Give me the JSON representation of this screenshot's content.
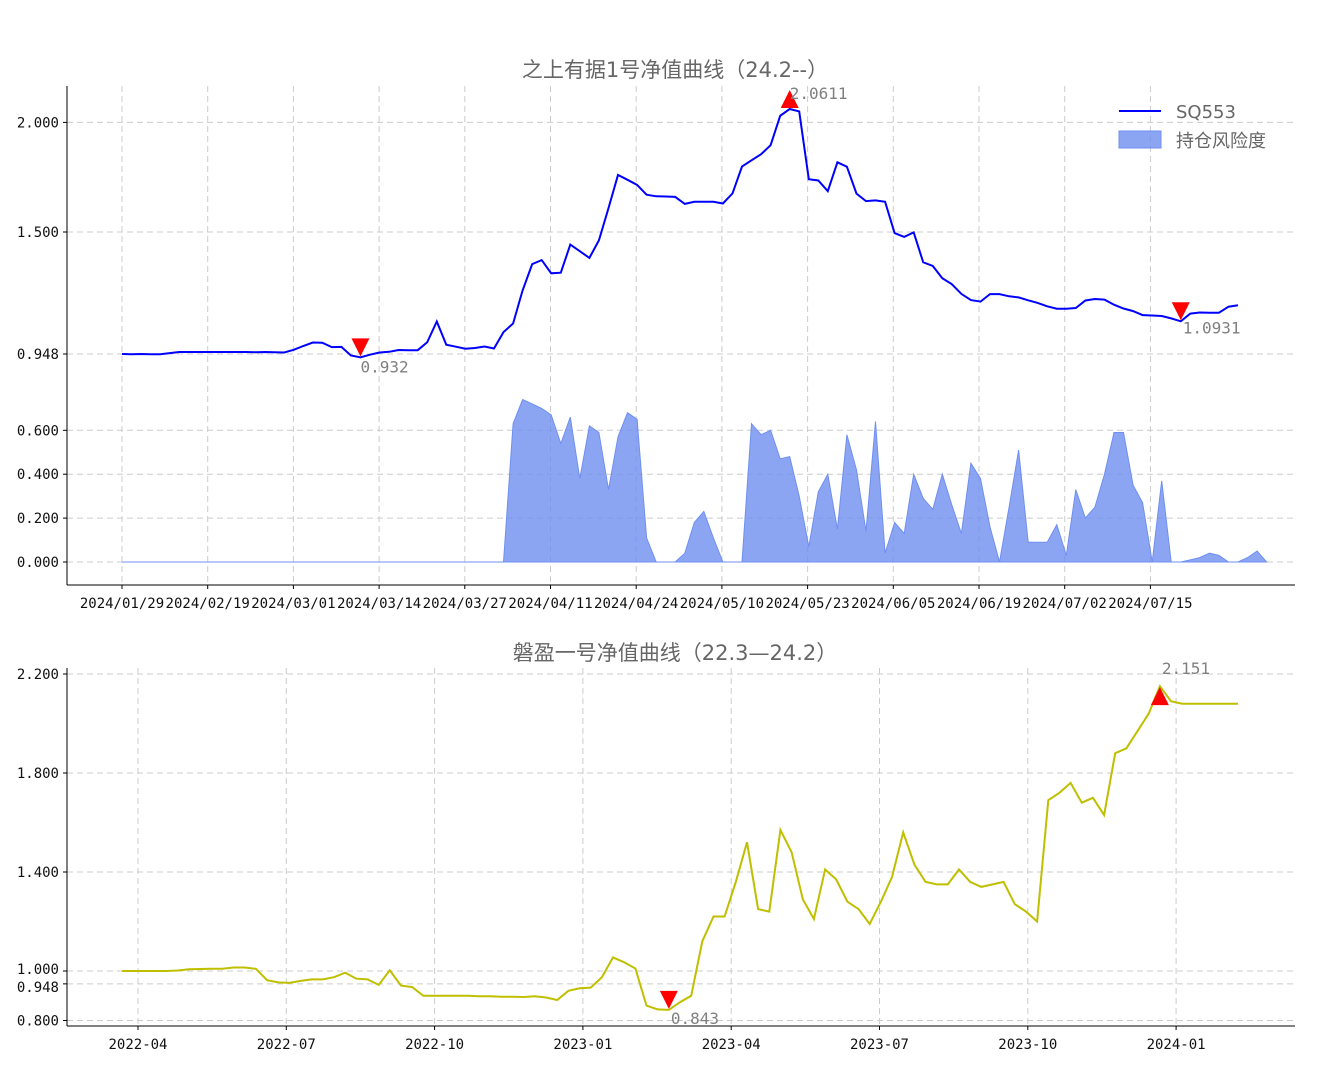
{
  "chart_data": [
    {
      "type": "line",
      "title": "之上有据1号净值曲线（24.2--）",
      "xlabel": "",
      "ylabel": "",
      "legend_position": "top-right",
      "grid": true,
      "x_ticks": [
        "2024/01/29",
        "2024/02/19",
        "2024/03/01",
        "2024/03/14",
        "2024/03/27",
        "2024/04/11",
        "2024/04/24",
        "2024/05/10",
        "2024/05/23",
        "2024/06/05",
        "2024/06/19",
        "2024/07/02",
        "2024/07/15"
      ],
      "nav_y_ticks": [
        "0.948",
        "1.500",
        "2.000"
      ],
      "risk_y_ticks": [
        "0.000",
        "0.200",
        "0.400",
        "0.600"
      ],
      "series": [
        {
          "name": "SQ553",
          "kind": "line",
          "color": "#0000ff",
          "values": [
            0.948,
            0.947,
            0.948,
            0.947,
            0.947,
            0.952,
            0.957,
            0.957,
            0.957,
            0.957,
            0.957,
            0.957,
            0.957,
            0.957,
            0.956,
            0.957,
            0.956,
            0.955,
            0.967,
            0.984,
            1.0,
            0.999,
            0.979,
            0.98,
            0.941,
            0.933,
            0.945,
            0.955,
            0.958,
            0.966,
            0.965,
            0.965,
            1.001,
            1.095,
            0.99,
            0.981,
            0.972,
            0.975,
            0.982,
            0.973,
            1.047,
            1.086,
            1.236,
            1.355,
            1.373,
            1.313,
            1.316,
            1.443,
            1.413,
            1.383,
            1.462,
            1.609,
            1.76,
            1.738,
            1.715,
            1.67,
            1.663,
            1.662,
            1.66,
            1.628,
            1.638,
            1.638,
            1.638,
            1.63,
            1.676,
            1.799,
            1.827,
            1.855,
            1.896,
            2.03,
            2.061,
            2.05,
            1.741,
            1.735,
            1.686,
            1.818,
            1.798,
            1.675,
            1.641,
            1.644,
            1.638,
            1.495,
            1.478,
            1.498,
            1.363,
            1.346,
            1.291,
            1.264,
            1.22,
            1.192,
            1.185,
            1.219,
            1.219,
            1.209,
            1.204,
            1.191,
            1.179,
            1.164,
            1.153,
            1.153,
            1.156,
            1.19,
            1.197,
            1.194,
            1.171,
            1.154,
            1.142,
            1.124,
            1.122,
            1.12,
            1.109,
            1.096,
            1.131,
            1.136,
            1.135,
            1.135,
            1.162,
            1.169
          ]
        },
        {
          "name": "持仓风险度",
          "kind": "area",
          "color": "#6f8ff0",
          "values": [
            0,
            0,
            0,
            0,
            0,
            0,
            0,
            0,
            0,
            0,
            0,
            0,
            0,
            0,
            0,
            0,
            0,
            0,
            0,
            0,
            0,
            0,
            0,
            0,
            0,
            0,
            0,
            0,
            0,
            0,
            0,
            0,
            0,
            0,
            0,
            0,
            0,
            0,
            0,
            0,
            0,
            0.63,
            0.74,
            0.72,
            0.7,
            0.67,
            0.54,
            0.66,
            0.38,
            0.62,
            0.59,
            0.33,
            0.57,
            0.68,
            0.65,
            0.11,
            0,
            0,
            0,
            0.04,
            0.18,
            0.23,
            0.11,
            0,
            0,
            0,
            0.63,
            0.58,
            0.6,
            0.47,
            0.48,
            0.3,
            0.07,
            0.32,
            0.4,
            0.15,
            0.58,
            0.42,
            0.14,
            0.64,
            0.04,
            0.18,
            0.13,
            0.4,
            0.29,
            0.24,
            0.4,
            0.26,
            0.13,
            0.45,
            0.38,
            0.16,
            0,
            0.25,
            0.51,
            0.09,
            0.09,
            0.09,
            0.17,
            0.03,
            0.33,
            0.2,
            0.25,
            0.4,
            0.59,
            0.59,
            0.35,
            0.27,
            0,
            0.37,
            0,
            0,
            0.01,
            0.02,
            0.04,
            0.03,
            0,
            0,
            0.02,
            0.05,
            0
          ]
        }
      ],
      "annotations": [
        {
          "label": "2.0611",
          "marker": "up",
          "color": "#ff0000"
        },
        {
          "label": "0.932",
          "marker": "down",
          "color": "#ff0000"
        },
        {
          "label": "1.0931",
          "marker": "down",
          "color": "#ff0000"
        }
      ]
    },
    {
      "type": "line",
      "title": "磐盈一号净值曲线（22.3—24.2）",
      "xlabel": "",
      "ylabel": "",
      "grid": true,
      "x_ticks": [
        "2022-04",
        "2022-07",
        "2022-10",
        "2023-01",
        "2023-04",
        "2023-07",
        "2023-10",
        "2024-01"
      ],
      "y_ticks": [
        "0.800",
        "0.948",
        "1.000",
        "1.400",
        "1.800",
        "2.200"
      ],
      "series": [
        {
          "name": "",
          "kind": "line",
          "color": "#bfbf00",
          "values": [
            1.0,
            1.0,
            1.0,
            1.0,
            1.0,
            1.002,
            1.007,
            1.008,
            1.009,
            1.009,
            1.014,
            1.014,
            1.009,
            0.963,
            0.954,
            0.952,
            0.96,
            0.966,
            0.966,
            0.975,
            0.993,
            0.969,
            0.966,
            0.944,
            1.003,
            0.941,
            0.935,
            0.9,
            0.9,
            0.9,
            0.9,
            0.9,
            0.898,
            0.898,
            0.896,
            0.896,
            0.895,
            0.898,
            0.893,
            0.883,
            0.92,
            0.93,
            0.933,
            0.975,
            1.055,
            1.035,
            1.01,
            0.86,
            0.845,
            0.843,
            0.874,
            0.9,
            1.12,
            1.22,
            1.22,
            1.36,
            1.52,
            1.25,
            1.24,
            1.57,
            1.48,
            1.29,
            1.21,
            1.41,
            1.37,
            1.28,
            1.25,
            1.19,
            1.28,
            1.38,
            1.56,
            1.43,
            1.36,
            1.35,
            1.35,
            1.41,
            1.36,
            1.34,
            1.35,
            1.36,
            1.27,
            1.24,
            1.2,
            1.69,
            1.72,
            1.76,
            1.68,
            1.7,
            1.63,
            1.88,
            1.9,
            1.97,
            2.04,
            2.151,
            2.09,
            2.08,
            2.08,
            2.08,
            2.08,
            2.08,
            2.08
          ]
        }
      ],
      "annotations": [
        {
          "label": "2.151",
          "marker": "up",
          "color": "#ff0000"
        },
        {
          "label": "0.843",
          "marker": "down",
          "color": "#ff0000"
        }
      ]
    }
  ]
}
